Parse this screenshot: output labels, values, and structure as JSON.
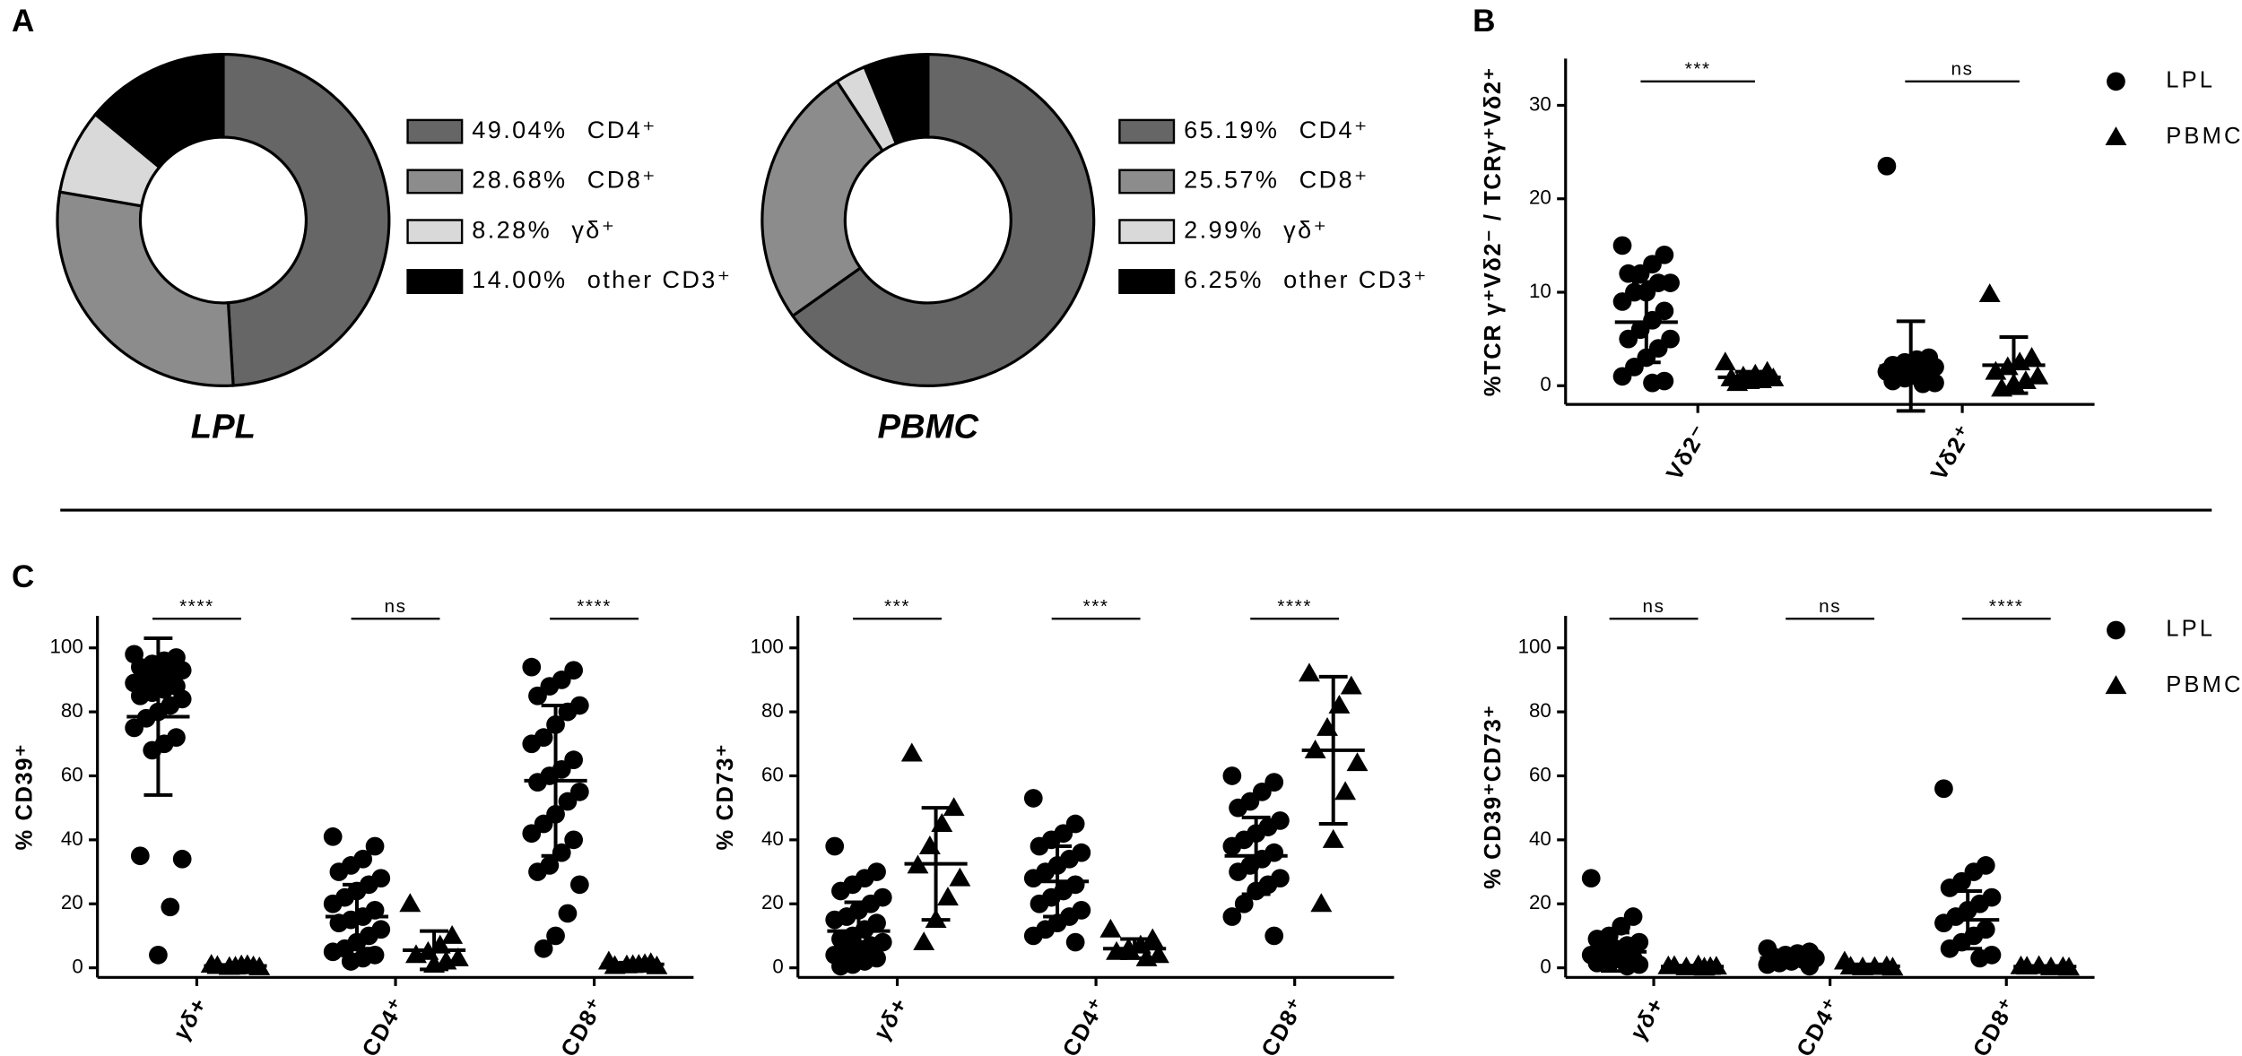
{
  "panel_labels": [
    "A",
    "B",
    "C"
  ],
  "chart_data": [
    {
      "type": "donut",
      "title": "LPL",
      "categories": [
        "CD4⁺",
        "CD8⁺",
        "γδ⁺",
        "other CD3⁺"
      ],
      "values": [
        49.04,
        28.68,
        8.28,
        14.0
      ],
      "value_labels": [
        "49.04%",
        "28.68%",
        "8.28%",
        "14.00%"
      ],
      "colors": [
        "#666666",
        "#8c8c8c",
        "#d9d9d9",
        "#000000"
      ]
    },
    {
      "type": "donut",
      "title": "PBMC",
      "categories": [
        "CD4⁺",
        "CD8⁺",
        "γδ⁺",
        "other CD3⁺"
      ],
      "values": [
        65.19,
        25.57,
        2.99,
        6.25
      ],
      "value_labels": [
        "65.19%",
        "25.57%",
        "2.99%",
        "6.25%"
      ],
      "colors": [
        "#666666",
        "#8c8c8c",
        "#d9d9d9",
        "#000000"
      ]
    },
    {
      "type": "dot",
      "ylabel": "%TCR γ⁺Vδ2⁻ / TCRγ⁺Vδ2⁺",
      "categories": [
        "Vδ2⁻",
        "Vδ2⁺"
      ],
      "ylim": [
        -2,
        35
      ],
      "yticks": [
        0,
        10,
        20,
        30
      ],
      "significance": [
        "***",
        "ns"
      ],
      "legend": "right",
      "series": [
        {
          "name": "LPL",
          "marker": "circle",
          "color": "#000000",
          "values": [
            [
              15,
              14,
              13,
              12,
              12,
              11,
              11,
              10,
              10,
              9,
              8,
              7,
              6,
              5,
              5,
              4,
              3,
              2,
              1,
              0.5,
              0.3
            ],
            [
              23.5,
              3,
              2.8,
              2.5,
              2.2,
              2,
              2,
              1.8,
              1.6,
              1.5,
              1.2,
              1,
              0.8,
              0.5,
              0.3,
              0.2
            ]
          ],
          "means": [
            6.8,
            2.1
          ],
          "sds": [
            4.3,
            4.8
          ]
        },
        {
          "name": "PBMC",
          "marker": "triangle",
          "color": "#000000",
          "values": [
            [
              2.5,
              1.5,
              1.2,
              1,
              0.8,
              0.8,
              0.6,
              0.5,
              0.3
            ],
            [
              9.8,
              3,
              2.5,
              2,
              1.5,
              1,
              0.5,
              0.2,
              -0.3
            ]
          ],
          "means": [
            0.9,
            2.2
          ],
          "sds": [
            0.6,
            3.0
          ]
        }
      ]
    },
    {
      "type": "dot",
      "ylabel": "% CD39⁺",
      "categories": [
        "γδ+",
        "CD4⁺",
        "CD8⁺"
      ],
      "ylim": [
        -3,
        110
      ],
      "yticks": [
        0,
        20,
        40,
        60,
        80,
        100
      ],
      "significance": [
        "****",
        "ns",
        "****"
      ],
      "series": [
        {
          "marker": "circle",
          "color": "#000000",
          "values": [
            [
              98,
              97,
              96,
              95,
              94,
              93,
              92,
              91,
              90,
              89,
              88,
              87,
              86,
              85,
              84,
              82,
              80,
              78,
              75,
              72,
              70,
              68,
              35,
              34,
              19,
              4
            ],
            [
              41,
              38,
              34,
              32,
              30,
              28,
              26,
              24,
              22,
              20,
              18,
              16,
              15,
              14,
              12,
              10,
              8,
              6,
              5,
              4,
              3,
              2
            ],
            [
              94,
              93,
              90,
              88,
              85,
              82,
              80,
              76,
              72,
              70,
              65,
              62,
              60,
              58,
              55,
              52,
              48,
              45,
              42,
              40,
              36,
              32,
              30,
              26,
              17,
              10,
              6
            ]
          ],
          "means": [
            78.5,
            16,
            58.5
          ],
          "sds": [
            24.5,
            10,
            23.5
          ]
        },
        {
          "marker": "triangle",
          "color": "#000000",
          "values": [
            [
              1,
              0.5,
              0.8,
              0.3,
              0.6,
              0.2,
              0.9,
              0.4
            ],
            [
              20,
              10,
              7,
              5,
              4,
              3,
              2,
              1
            ],
            [
              2,
              1.5,
              1,
              0.8,
              0.6,
              0.5,
              1.2,
              0.9
            ]
          ],
          "means": [
            0.6,
            5.5,
            1.1
          ],
          "sds": [
            0.3,
            6,
            0.5
          ]
        }
      ]
    },
    {
      "type": "dot",
      "ylabel": "% CD73⁺",
      "categories": [
        "γδ+",
        "CD4⁺",
        "CD8⁺"
      ],
      "ylim": [
        -3,
        110
      ],
      "yticks": [
        0,
        20,
        40,
        60,
        80,
        100
      ],
      "significance": [
        "***",
        "***",
        "****"
      ],
      "series": [
        {
          "marker": "circle",
          "color": "#000000",
          "values": [
            [
              38,
              30,
              28,
              26,
              24,
              22,
              20,
              18,
              16,
              15,
              14,
              12,
              10,
              9,
              8,
              7,
              6,
              5,
              4,
              3,
              2,
              1,
              0.5
            ],
            [
              53,
              45,
              42,
              40,
              38,
              36,
              34,
              32,
              30,
              28,
              26,
              24,
              22,
              20,
              18,
              16,
              14,
              12,
              10,
              8
            ],
            [
              60,
              58,
              55,
              52,
              50,
              46,
              44,
              42,
              40,
              38,
              36,
              34,
              32,
              30,
              28,
              26,
              24,
              20,
              16,
              10
            ]
          ],
          "means": [
            11.5,
            27,
            35
          ],
          "sds": [
            9,
            11,
            12
          ]
        },
        {
          "marker": "triangle",
          "color": "#000000",
          "values": [
            [
              67,
              50,
              45,
              38,
              32,
              28,
              22,
              15,
              8
            ],
            [
              12,
              9,
              7,
              6,
              5,
              4,
              3
            ],
            [
              92,
              88,
              82,
              75,
              68,
              64,
              55,
              40,
              20
            ]
          ],
          "means": [
            32.5,
            6,
            68
          ],
          "sds": [
            17.5,
            3,
            23
          ]
        }
      ]
    },
    {
      "type": "dot",
      "ylabel": "% CD39⁺CD73⁺",
      "categories": [
        "γδ+",
        "CD4⁺",
        "CD8⁺"
      ],
      "ylim": [
        -3,
        110
      ],
      "yticks": [
        0,
        20,
        40,
        60,
        80,
        100
      ],
      "significance": [
        "ns",
        "ns",
        "****"
      ],
      "legend": "right",
      "series": [
        {
          "name": "LPL",
          "marker": "circle",
          "color": "#000000",
          "values": [
            [
              28,
              16,
              13,
              10,
              9,
              8,
              7,
              6,
              5,
              4,
              3,
              2.5,
              2,
              1.5,
              1,
              0.5
            ],
            [
              6,
              5,
              4.5,
              4,
              3.5,
              3,
              2.5,
              2,
              1.5,
              1,
              0.5
            ],
            [
              56,
              32,
              30,
              27,
              25,
              22,
              20,
              18,
              16,
              14,
              12,
              10,
              8,
              6,
              4,
              3
            ]
          ],
          "means": [
            5,
            3,
            15
          ],
          "sds": [
            6,
            2,
            9
          ]
        },
        {
          "name": "PBMC",
          "marker": "triangle",
          "color": "#000000",
          "values": [
            [
              0.5,
              0.3,
              0.8,
              0.2,
              0.6,
              0.4,
              0.1
            ],
            [
              2,
              0.5,
              0.3,
              0.2,
              0.4,
              0.1
            ],
            [
              0.5,
              0.3,
              0.2,
              0.6,
              0.4,
              0.1
            ]
          ],
          "means": [
            0.4,
            0.5,
            0.4
          ],
          "sds": [
            0.3,
            0.6,
            0.2
          ]
        }
      ]
    }
  ]
}
